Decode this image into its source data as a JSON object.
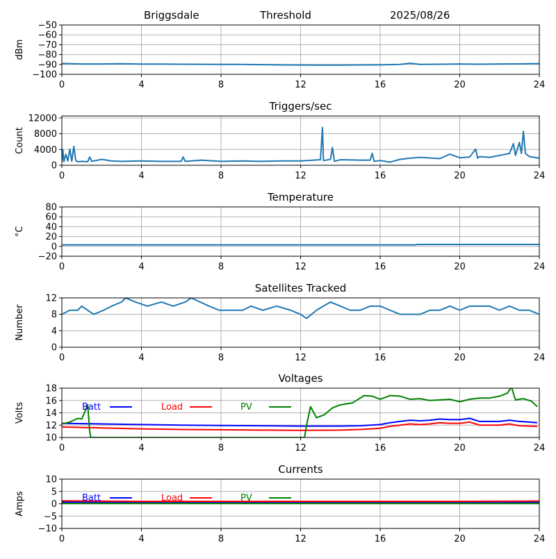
{
  "header": {
    "station": "Briggsdale",
    "mode": "Threshold",
    "date": "2025/08/26"
  },
  "chart_data": [
    {
      "id": "signal",
      "type": "line",
      "title": "",
      "ylabel": "dBm",
      "xlim": [
        0,
        24
      ],
      "ylim": [
        -100,
        -50
      ],
      "xticks": [
        0,
        4,
        8,
        12,
        16,
        20,
        24
      ],
      "yticks": [
        -100,
        -90,
        -80,
        -70,
        -60,
        -50
      ],
      "ytick_labels": [
        "−100",
        "−90",
        "−80",
        "−70",
        "−60",
        "−50"
      ],
      "grid": true,
      "series": [
        {
          "color": "#1f77b4",
          "x": [
            0,
            1,
            2,
            3,
            4,
            5,
            6,
            7,
            8,
            9,
            10,
            11,
            12,
            13,
            14,
            15,
            16,
            17,
            17.5,
            18,
            19,
            20,
            21,
            22,
            23,
            24
          ],
          "y": [
            -89,
            -89.5,
            -89.5,
            -89.3,
            -89.6,
            -89.6,
            -89.8,
            -89.9,
            -90,
            -90,
            -90.2,
            -90.5,
            -90.6,
            -90.7,
            -90.7,
            -90.5,
            -90.4,
            -90,
            -88.8,
            -90,
            -89.8,
            -89.5,
            -89.8,
            -89.5,
            -89.4,
            -89.2
          ]
        }
      ]
    },
    {
      "id": "triggers",
      "type": "line",
      "title": "Triggers/sec",
      "ylabel": "Count",
      "xlim": [
        0,
        24
      ],
      "ylim": [
        0,
        12500
      ],
      "xticks": [
        0,
        4,
        8,
        12,
        16,
        20,
        24
      ],
      "yticks": [
        0,
        4000,
        8000,
        12000
      ],
      "ytick_labels": [
        "0",
        "4000",
        "8000",
        "12000"
      ],
      "grid": true,
      "series": [
        {
          "color": "#1f77b4",
          "x": [
            0,
            0.05,
            0.1,
            0.2,
            0.3,
            0.4,
            0.5,
            0.6,
            0.7,
            0.8,
            1.0,
            1.3,
            1.4,
            1.5,
            2.0,
            2.5,
            3.0,
            4.0,
            5.0,
            6.0,
            6.1,
            6.2,
            7.0,
            8.0,
            9.0,
            10.0,
            11.0,
            12.0,
            13.0,
            13.1,
            13.15,
            13.5,
            13.6,
            13.7,
            14.0,
            15.0,
            15.5,
            15.6,
            15.7,
            16.0,
            16.5,
            17.0,
            17.5,
            18.0,
            19.0,
            19.5,
            20.0,
            20.5,
            20.8,
            20.9,
            21.0,
            21.5,
            22.0,
            22.5,
            22.7,
            22.8,
            23.0,
            23.1,
            23.2,
            23.3,
            23.5,
            24.0
          ],
          "y": [
            900,
            4000,
            900,
            2800,
            1100,
            4100,
            1000,
            4800,
            1200,
            900,
            1000,
            900,
            2100,
            1000,
            1500,
            1100,
            1000,
            1100,
            1000,
            1000,
            2100,
            1000,
            1300,
            1000,
            1100,
            1000,
            1100,
            1100,
            1400,
            9600,
            1200,
            1500,
            4500,
            1000,
            1400,
            1300,
            1300,
            3000,
            1000,
            1200,
            800,
            1500,
            1800,
            2000,
            1700,
            2800,
            1900,
            2100,
            4100,
            1800,
            2200,
            2000,
            2500,
            3000,
            5500,
            2500,
            5800,
            3000,
            8600,
            3000,
            2200,
            1800
          ]
        }
      ]
    },
    {
      "id": "temperature",
      "type": "line",
      "title": "Temperature",
      "ylabel": "°C",
      "xlim": [
        0,
        24
      ],
      "ylim": [
        -20,
        80
      ],
      "xticks": [
        0,
        4,
        8,
        12,
        16,
        20,
        24
      ],
      "yticks": [
        -20,
        0,
        20,
        40,
        60,
        80
      ],
      "ytick_labels": [
        "−20",
        "0",
        "20",
        "40",
        "60",
        "80"
      ],
      "grid": true,
      "series": [
        {
          "color": "#1f77b4",
          "x": [
            0,
            17.8,
            17.81,
            24
          ],
          "y": [
            3,
            3,
            4,
            4
          ]
        }
      ]
    },
    {
      "id": "satellites",
      "type": "line",
      "title": "Satellites Tracked",
      "ylabel": "Number",
      "xlim": [
        0,
        24
      ],
      "ylim": [
        0,
        12
      ],
      "xticks": [
        0,
        4,
        8,
        12,
        16,
        20,
        24
      ],
      "yticks": [
        0,
        4,
        8,
        12
      ],
      "ytick_labels": [
        "0",
        "4",
        "8",
        "12"
      ],
      "grid": true,
      "series": [
        {
          "color": "#1f77b4",
          "x": [
            0,
            0.4,
            0.8,
            1.0,
            1.6,
            2.1,
            2.5,
            3.0,
            3.2,
            3.7,
            4.3,
            5.0,
            5.6,
            6.2,
            6.5,
            7.4,
            7.9,
            8.5,
            9.1,
            9.5,
            10.1,
            10.8,
            11.5,
            12.0,
            12.3,
            12.8,
            13.5,
            14.0,
            14.5,
            15.0,
            15.5,
            16.0,
            16.5,
            17.0,
            17.5,
            18.0,
            18.5,
            19.0,
            19.5,
            20.0,
            20.5,
            21.0,
            21.5,
            22.0,
            22.5,
            23.0,
            23.5,
            24.0
          ],
          "y": [
            8,
            9,
            9,
            10,
            8,
            9,
            10,
            11,
            12,
            11,
            10,
            11,
            10,
            11,
            12,
            10,
            9,
            9,
            9,
            10,
            9,
            10,
            9,
            8,
            7,
            9,
            11,
            10,
            9,
            9,
            10,
            10,
            9,
            8,
            8,
            8,
            9,
            9,
            10,
            9,
            10,
            10,
            10,
            9,
            10,
            9,
            9,
            8
          ]
        }
      ]
    },
    {
      "id": "voltages",
      "type": "line",
      "title": "Voltages",
      "ylabel": "Volts",
      "xlim": [
        0,
        24
      ],
      "ylim": [
        10,
        18
      ],
      "xticks": [
        0,
        4,
        8,
        12,
        16,
        20,
        24
      ],
      "yticks": [
        10,
        12,
        14,
        16,
        18
      ],
      "ytick_labels": [
        "10",
        "12",
        "14",
        "16",
        "18"
      ],
      "grid": true,
      "legend": "top-left",
      "series": [
        {
          "name": "Batt",
          "color": "#0000ff",
          "x": [
            0,
            2,
            4,
            6,
            8,
            10,
            12,
            14,
            15,
            16,
            16.5,
            17,
            17.5,
            18,
            18.5,
            19,
            19.5,
            20,
            20.5,
            21,
            22,
            22.5,
            23,
            23.5,
            23.9
          ],
          "y": [
            12.3,
            12.2,
            12.1,
            12.0,
            11.95,
            11.9,
            11.85,
            11.85,
            11.9,
            12.1,
            12.4,
            12.6,
            12.8,
            12.7,
            12.8,
            13.0,
            12.9,
            12.9,
            13.1,
            12.6,
            12.6,
            12.8,
            12.6,
            12.5,
            12.4
          ]
        },
        {
          "name": "Load",
          "color": "#ff0000",
          "x": [
            0,
            2,
            4,
            6,
            8,
            10,
            12,
            14,
            15,
            16,
            16.5,
            17,
            17.5,
            18,
            18.5,
            19,
            19.5,
            20,
            20.5,
            21,
            22,
            22.5,
            23,
            23.5,
            23.9
          ],
          "y": [
            11.7,
            11.55,
            11.4,
            11.3,
            11.25,
            11.2,
            11.15,
            11.2,
            11.3,
            11.5,
            11.8,
            12.0,
            12.2,
            12.1,
            12.2,
            12.4,
            12.3,
            12.3,
            12.5,
            12.0,
            12.0,
            12.2,
            11.9,
            11.85,
            11.8
          ]
        },
        {
          "name": "PV",
          "color": "#008000",
          "x": [
            0,
            0.4,
            0.8,
            1.0,
            1.3,
            1.4,
            1.45,
            12.2,
            12.3,
            12.5,
            12.8,
            13.2,
            13.6,
            14.0,
            14.6,
            15.2,
            15.6,
            16.0,
            16.5,
            17.0,
            17.5,
            18.0,
            18.5,
            19.0,
            19.5,
            20.0,
            20.5,
            21.0,
            21.5,
            22.0,
            22.4,
            22.6,
            22.8,
            23.2,
            23.6,
            23.9
          ],
          "y": [
            12.2,
            12.5,
            13.1,
            13.0,
            15.3,
            11.0,
            10.0,
            10.0,
            12.0,
            15.0,
            13.2,
            13.7,
            14.8,
            15.3,
            15.6,
            16.8,
            16.7,
            16.2,
            16.8,
            16.7,
            16.2,
            16.3,
            16.0,
            16.1,
            16.2,
            15.8,
            16.2,
            16.4,
            16.4,
            16.7,
            17.2,
            18.2,
            16.1,
            16.3,
            15.9,
            15.0
          ]
        }
      ]
    },
    {
      "id": "currents",
      "type": "line",
      "title": "Currents",
      "ylabel": "Amps",
      "xlim": [
        0,
        24
      ],
      "ylim": [
        -10,
        10
      ],
      "xticks": [
        0,
        4,
        8,
        12,
        16,
        20,
        24
      ],
      "yticks": [
        -10,
        -5,
        0,
        5,
        10
      ],
      "ytick_labels": [
        "−10",
        "−5",
        "0",
        "5",
        "10"
      ],
      "grid": true,
      "legend": "top-left",
      "series": [
        {
          "name": "Batt",
          "color": "#0000ff",
          "x": [
            0,
            24
          ],
          "y": [
            0.7,
            0.7
          ]
        },
        {
          "name": "Load",
          "color": "#ff0000",
          "x": [
            0,
            4,
            8,
            12,
            16,
            20,
            24
          ],
          "y": [
            1.2,
            1.0,
            1.0,
            1.0,
            1.0,
            1.0,
            1.1
          ]
        },
        {
          "name": "PV",
          "color": "#008000",
          "x": [
            0,
            24
          ],
          "y": [
            0.1,
            0.1
          ]
        }
      ]
    }
  ]
}
